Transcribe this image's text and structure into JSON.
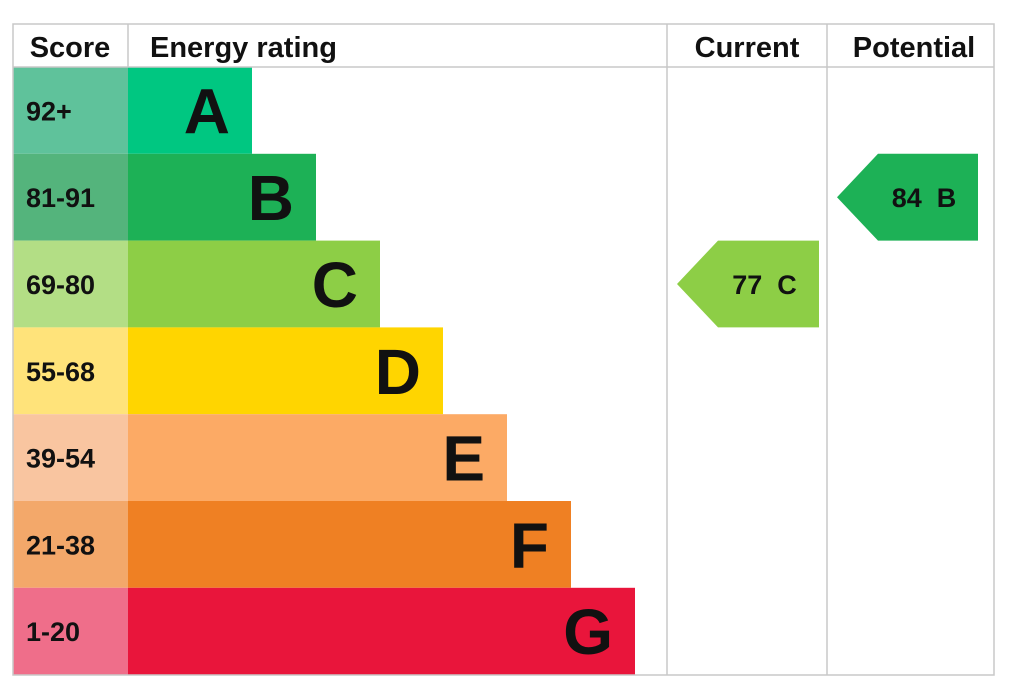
{
  "chart_data": {
    "type": "table",
    "headers": {
      "score": "Score",
      "rating": "Energy rating",
      "current": "Current",
      "potential": "Potential"
    },
    "bands": [
      {
        "letter": "A",
        "range": "92+",
        "color": "#00c781",
        "score_bg": "#5fc29b"
      },
      {
        "letter": "B",
        "range": "81-91",
        "color": "#1db156",
        "score_bg": "#54b47c"
      },
      {
        "letter": "C",
        "range": "69-80",
        "color": "#8dce46",
        "score_bg": "#b3de85"
      },
      {
        "letter": "D",
        "range": "55-68",
        "color": "#ffd500",
        "score_bg": "#ffe37a"
      },
      {
        "letter": "E",
        "range": "39-54",
        "color": "#fcaa65",
        "score_bg": "#f9c5a0"
      },
      {
        "letter": "F",
        "range": "21-38",
        "color": "#ef8023",
        "score_bg": "#f3a86a"
      },
      {
        "letter": "G",
        "range": "1-20",
        "color": "#e9153b",
        "score_bg": "#ef6e8a"
      }
    ],
    "current": {
      "score": 77,
      "band": "C",
      "label": "77  C",
      "color": "#8dce46"
    },
    "potential": {
      "score": 84,
      "band": "B",
      "label": "84  B",
      "color": "#1db156"
    }
  }
}
